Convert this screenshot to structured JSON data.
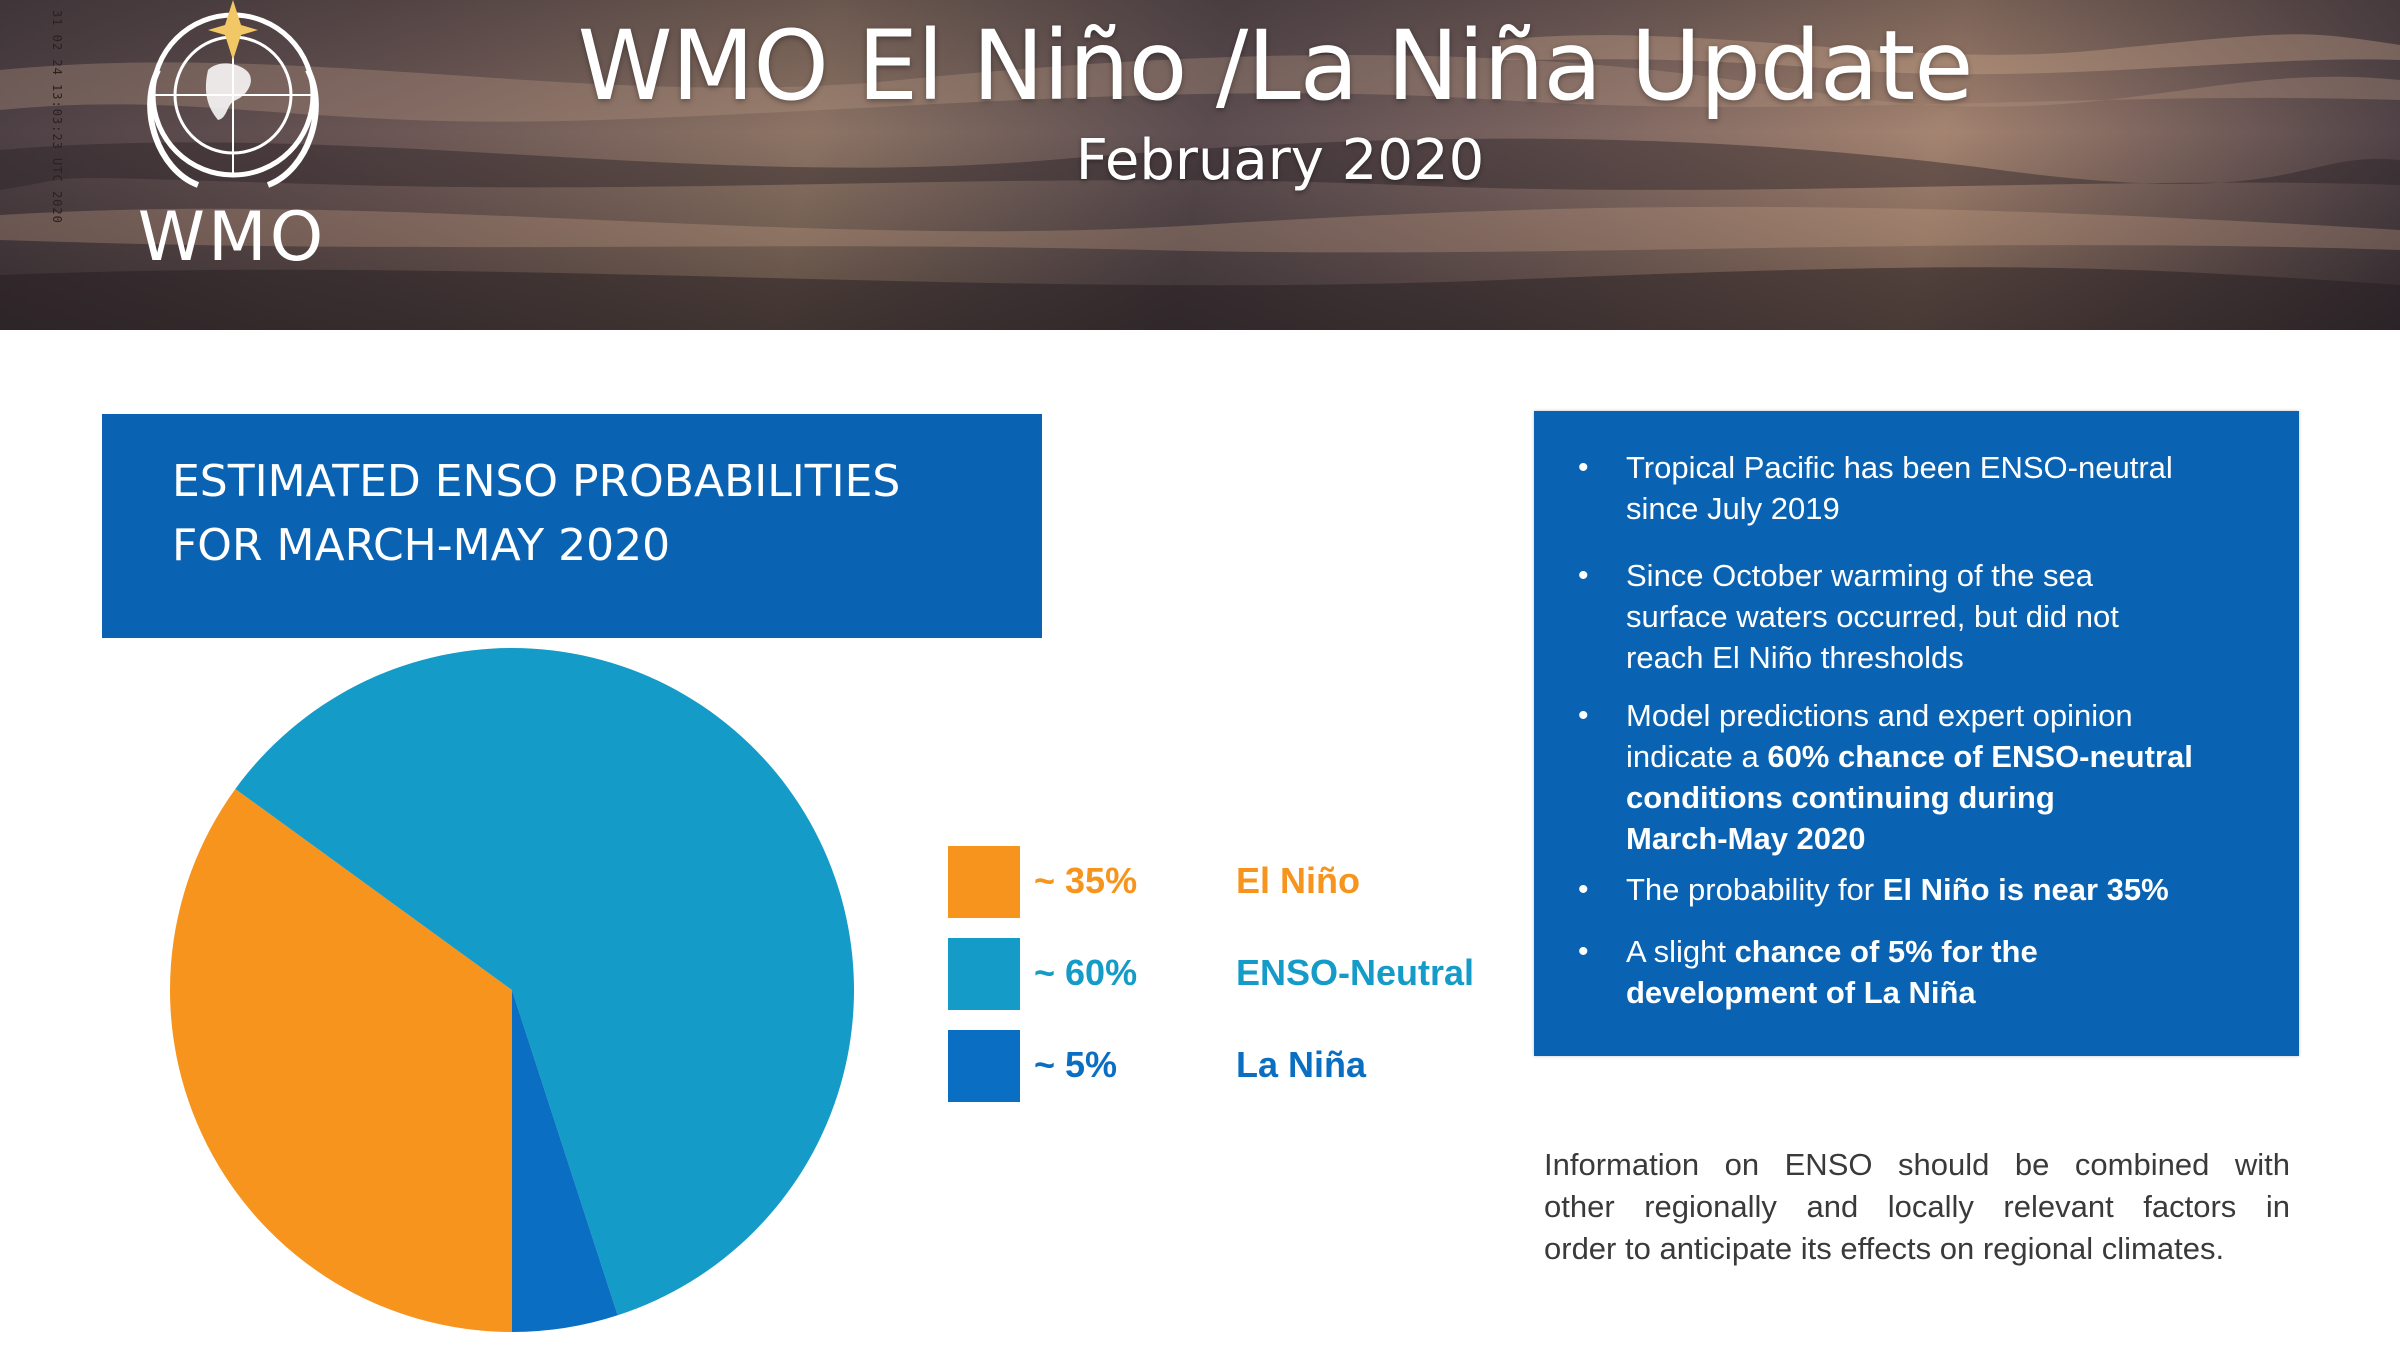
{
  "header": {
    "title": "WMO El Niño /La Niña Update",
    "subtitle": "February 2020",
    "logo_text": "WMO",
    "side_stamp": "31 02 24 13:03:23 UTC 2020"
  },
  "colors": {
    "el_nino": "#f7941d",
    "enso_neutral": "#149bc7",
    "la_nina": "#0a6fc2",
    "box_blue": "#0a63b2"
  },
  "chart_box": {
    "line1": "ESTIMATED ENSO PROBABILITIES",
    "line2": "FOR MARCH-MAY 2020"
  },
  "chart_data": {
    "type": "pie",
    "title": "ESTIMATED ENSO PROBABILITIES FOR MARCH-MAY 2020",
    "slices": [
      {
        "name": "El Niño",
        "label": "~ 35%",
        "value": 35,
        "color": "#f7941d"
      },
      {
        "name": "ENSO-Neutral",
        "label": "~ 60%",
        "value": 60,
        "color": "#149bc7"
      },
      {
        "name": "La Niña",
        "label": "~ 5%",
        "value": 5,
        "color": "#0a6fc2"
      }
    ],
    "legend_placement": "right"
  },
  "info_box": {
    "bullets": [
      {
        "lines": [
          [
            {
              "t": "Tropical Pacific has been ENSO-neutral"
            }
          ],
          [
            {
              "t": "since July 2019"
            }
          ]
        ]
      },
      {
        "lines": [
          [
            {
              "t": "Since October warming of the sea"
            }
          ],
          [
            {
              "t": "surface waters occurred, but did not"
            }
          ],
          [
            {
              "t": "reach El Niño thresholds"
            }
          ]
        ]
      },
      {
        "lines": [
          [
            {
              "t": "Model predictions and expert opinion"
            }
          ],
          [
            {
              "t": "indicate a "
            },
            {
              "t": "60% chance of ENSO-neutral",
              "b": true
            }
          ],
          [
            {
              "t": "conditions continuing during",
              "b": true
            }
          ],
          [
            {
              "t": "March-May 2020",
              "b": true
            }
          ]
        ]
      },
      {
        "lines": [
          [
            {
              "t": "The probability for "
            },
            {
              "t": "El Niño is near 35%",
              "b": true
            }
          ]
        ]
      },
      {
        "lines": [
          [
            {
              "t": "A slight "
            },
            {
              "t": "chance of 5% for the",
              "b": true
            }
          ],
          [
            {
              "t": "development of La Niña",
              "b": true
            }
          ]
        ]
      }
    ]
  },
  "note": {
    "lines": [
      "Information on ENSO should be combined with",
      "other regionally and locally relevant factors in",
      "order to anticipate its effects on regional climates."
    ]
  }
}
